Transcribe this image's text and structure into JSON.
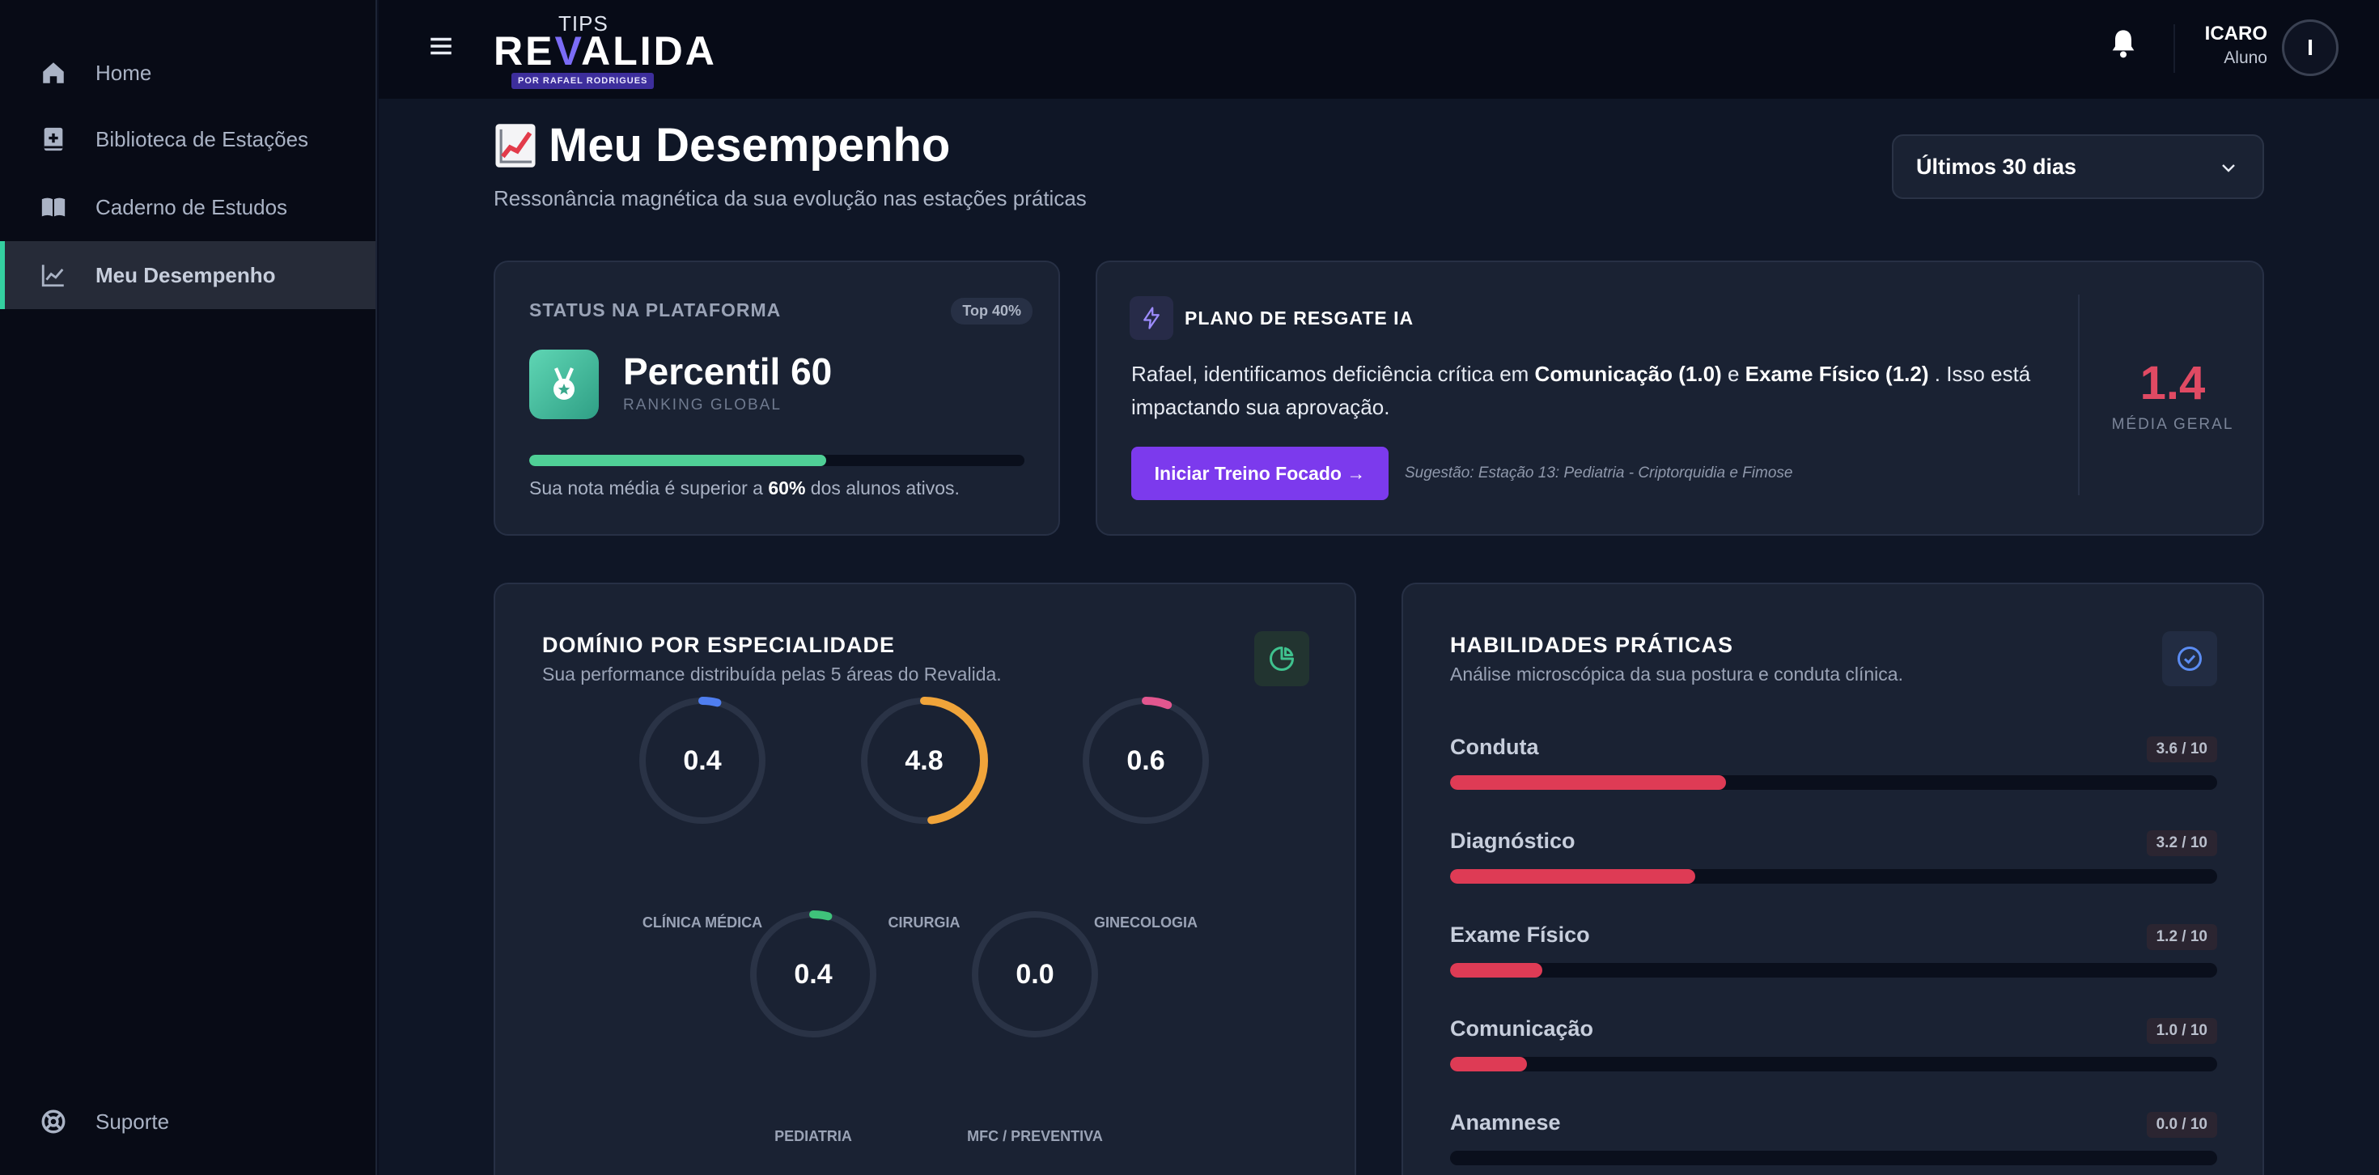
{
  "sidebar": {
    "items": [
      {
        "label": "Home",
        "icon": "home-icon"
      },
      {
        "label": "Biblioteca de Estações",
        "icon": "book-plus-icon"
      },
      {
        "label": "Caderno de Estudos",
        "icon": "open-book-icon"
      },
      {
        "label": "Meu Desempenho",
        "icon": "chart-line-icon",
        "active": true
      }
    ],
    "support_label": "Suporte"
  },
  "header": {
    "logo_top": "TIPS",
    "logo_main_a": "RE",
    "logo_main_v": "V",
    "logo_main_b": "ALIDA",
    "logo_sub": "POR RAFAEL RODRIGUES",
    "user_name": "ICARO",
    "user_role": "Aluno",
    "avatar_initial": "I"
  },
  "page": {
    "title": "Meu Desempenho",
    "subtitle": "Ressonância magnética da sua evolução nas estações práticas",
    "range_selected": "Últimos 30 dias"
  },
  "status": {
    "title": "STATUS NA PLATAFORMA",
    "badge": "Top 40%",
    "percentil": "Percentil 60",
    "ranking": "RANKING GLOBAL",
    "progress": 0.6,
    "note_pre": "Sua nota média é superior a ",
    "note_value": "60%",
    "note_post": " dos alunos ativos."
  },
  "plano": {
    "title": "PLANO DE RESGATE IA",
    "text_a": "Rafael, identificamos deficiência crítica em ",
    "text_b": "Comunicação (1.0)",
    "text_c": " e ",
    "text_d": "Exame Físico (1.2)",
    "text_e": " . Isso está impactando sua aprovação.",
    "button": "Iniciar Treino Focado →",
    "suggestion": "Sugestão: Estação 13: Pediatria - Criptorquidia e Fimose",
    "media_value": "1.4",
    "media_label": "MÉDIA GERAL"
  },
  "dominio": {
    "title": "DOMÍNIO POR ESPECIALIDADE",
    "subtitle": "Sua performance distribuída pelas 5 áreas do Revalida.",
    "specialties": [
      {
        "label": "CLÍNICA MÉDICA",
        "value": "0.4",
        "score": 0.4,
        "color": "#4f7ef0"
      },
      {
        "label": "CIRURGIA",
        "value": "4.8",
        "score": 4.8,
        "color": "#f0a43a"
      },
      {
        "label": "GINECOLOGIA",
        "value": "0.6",
        "score": 0.6,
        "color": "#e2568f"
      },
      {
        "label": "PEDIATRIA",
        "value": "0.4",
        "score": 0.4,
        "color": "#3fc27a"
      },
      {
        "label": "MFC / PREVENTIVA",
        "value": "0.0",
        "score": 0.0,
        "color": "#8a6cf2"
      }
    ]
  },
  "habilidades": {
    "title": "HABILIDADES PRÁTICAS",
    "subtitle": "Análise microscópica da sua postura e conduta clínica.",
    "skills": [
      {
        "name": "Conduta",
        "score_label": "3.6 / 10",
        "score": 3.6
      },
      {
        "name": "Diagnóstico",
        "score_label": "3.2 / 10",
        "score": 3.2
      },
      {
        "name": "Exame Físico",
        "score_label": "1.2 / 10",
        "score": 1.2
      },
      {
        "name": "Comunicação",
        "score_label": "1.0 / 10",
        "score": 1.0
      },
      {
        "name": "Anamnese",
        "score_label": "0.0 / 10",
        "score": 0.0
      }
    ],
    "bar_color": "#de3b55"
  }
}
